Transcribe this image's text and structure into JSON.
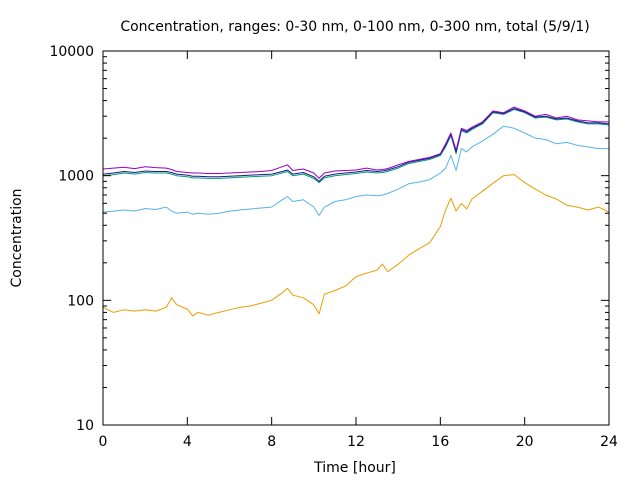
{
  "chart_data": {
    "type": "line",
    "title": "Concentration, ranges: 0-30 nm, 0-100 nm, 0-300 nm, total (5/9/1)",
    "xlabel": "Time [hour]",
    "ylabel": "Concentration",
    "xlim": [
      0,
      24
    ],
    "ylim": [
      10,
      10000
    ],
    "yscale": "log",
    "grid": false,
    "legend": "none",
    "x_ticks": [
      0,
      4,
      8,
      12,
      16,
      20,
      24
    ],
    "x_tick_labels": [
      "0",
      "4",
      "8",
      "12",
      "16",
      "20",
      "24"
    ],
    "y_ticks": [
      10,
      100,
      1000,
      10000
    ],
    "y_tick_labels": [
      "10",
      "100",
      "1000",
      "10000"
    ],
    "x": [
      0,
      0.5,
      1,
      1.5,
      2,
      2.5,
      3,
      3.25,
      3.5,
      4,
      4.25,
      4.5,
      5,
      5.5,
      6,
      6.5,
      7,
      7.5,
      8,
      8.5,
      8.75,
      9,
      9.5,
      10,
      10.25,
      10.5,
      11,
      11.5,
      12,
      12.5,
      13,
      13.25,
      13.5,
      14,
      14.5,
      15,
      15.5,
      16,
      16.25,
      16.5,
      16.75,
      17,
      17.25,
      17.5,
      18,
      18.5,
      19,
      19.5,
      20,
      20.5,
      21,
      21.5,
      22,
      22.5,
      23,
      23.5,
      24
    ],
    "series": [
      {
        "color": "#e69f00",
        "values": [
          88,
          80,
          84,
          82,
          84,
          82,
          88,
          105,
          92,
          85,
          75,
          80,
          76,
          80,
          84,
          88,
          90,
          95,
          100,
          115,
          125,
          110,
          105,
          92,
          78,
          112,
          120,
          130,
          155,
          165,
          175,
          195,
          170,
          195,
          230,
          260,
          290,
          390,
          530,
          660,
          520,
          600,
          540,
          650,
          750,
          870,
          1000,
          1020,
          880,
          780,
          700,
          650,
          580,
          560,
          530,
          560,
          510
        ]
      },
      {
        "color": "#56b4e9",
        "values": [
          510,
          520,
          530,
          520,
          545,
          535,
          560,
          520,
          500,
          510,
          490,
          500,
          490,
          500,
          520,
          530,
          540,
          550,
          560,
          640,
          680,
          620,
          640,
          560,
          480,
          560,
          620,
          640,
          680,
          700,
          690,
          700,
          720,
          780,
          860,
          890,
          930,
          1050,
          1150,
          1450,
          1100,
          1650,
          1550,
          1700,
          1900,
          2150,
          2500,
          2400,
          2200,
          2000,
          1950,
          1800,
          1850,
          1750,
          1700,
          1650,
          1650
        ]
      },
      {
        "color": "#009e73",
        "values": [
          1000,
          1020,
          1050,
          1030,
          1060,
          1050,
          1050,
          1030,
          1000,
          980,
          960,
          960,
          950,
          950,
          960,
          970,
          980,
          990,
          1000,
          1050,
          1080,
          1000,
          1030,
          950,
          880,
          960,
          1000,
          1020,
          1040,
          1070,
          1050,
          1060,
          1080,
          1150,
          1250,
          1300,
          1350,
          1450,
          1700,
          2100,
          1500,
          2300,
          2200,
          2350,
          2600,
          3200,
          3100,
          3400,
          3200,
          2900,
          2950,
          2800,
          2850,
          2700,
          2600,
          2600,
          2550
        ]
      },
      {
        "color": "#1a1a8a",
        "values": [
          1030,
          1050,
          1080,
          1060,
          1090,
          1080,
          1080,
          1060,
          1030,
          1010,
          990,
          990,
          980,
          980,
          990,
          1000,
          1010,
          1020,
          1030,
          1080,
          1110,
          1030,
          1060,
          980,
          900,
          990,
          1030,
          1050,
          1070,
          1100,
          1080,
          1090,
          1110,
          1180,
          1280,
          1330,
          1380,
          1480,
          1750,
          2150,
          1550,
          2350,
          2250,
          2400,
          2650,
          3250,
          3150,
          3450,
          3250,
          2950,
          3000,
          2850,
          2900,
          2750,
          2650,
          2650,
          2600
        ]
      },
      {
        "color": "#9400d3",
        "values": [
          1130,
          1150,
          1170,
          1140,
          1180,
          1160,
          1150,
          1120,
          1080,
          1060,
          1050,
          1050,
          1040,
          1040,
          1050,
          1060,
          1070,
          1080,
          1100,
          1180,
          1220,
          1100,
          1130,
          1050,
          950,
          1050,
          1090,
          1100,
          1110,
          1150,
          1110,
          1120,
          1140,
          1220,
          1300,
          1350,
          1400,
          1500,
          1800,
          2200,
          1600,
          2400,
          2300,
          2450,
          2700,
          3300,
          3200,
          3550,
          3300,
          3000,
          3100,
          2900,
          3000,
          2800,
          2750,
          2700,
          2700
        ]
      }
    ]
  }
}
